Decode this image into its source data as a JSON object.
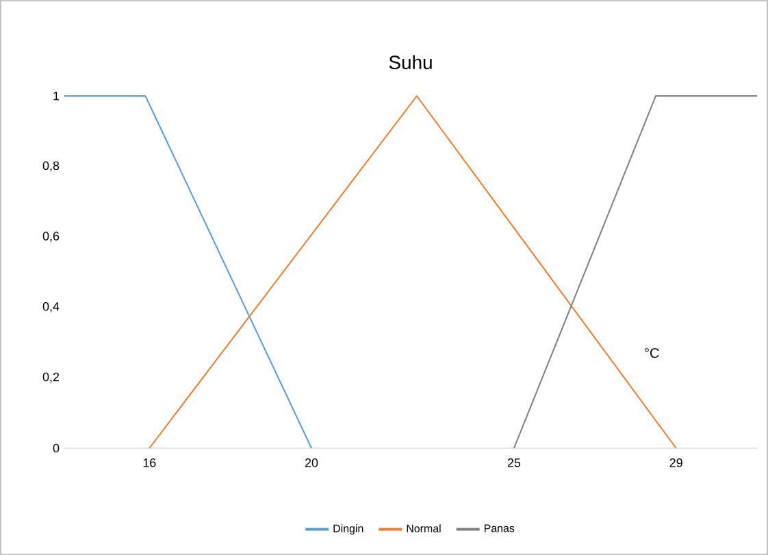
{
  "chart_data": {
    "type": "line",
    "title": "Suhu",
    "series": [
      {
        "name": "Dingin",
        "color": "#5b9bd5",
        "x": [
          13.9,
          15.9,
          20
        ],
        "values": [
          1,
          1,
          0
        ]
      },
      {
        "name": "Normal",
        "color": "#ed7d31",
        "x": [
          16,
          22.6,
          29
        ],
        "values": [
          0,
          1,
          0
        ]
      },
      {
        "name": "Panas",
        "color": "#7f7f7f",
        "x": [
          25,
          28.5,
          31
        ],
        "values": [
          0,
          1,
          1
        ]
      }
    ],
    "xlim": [
      13.9,
      31
    ],
    "xticks": [
      16,
      20,
      25,
      29
    ],
    "ylim": [
      0,
      1
    ],
    "yticks": [
      0,
      {
        "value": 0.2,
        "label": "0,2"
      },
      {
        "value": 0.4,
        "label": "0,4"
      },
      {
        "value": 0.6,
        "label": "0,6"
      },
      {
        "value": 0.8,
        "label": "0,8"
      },
      1
    ],
    "annotations": [
      "°C"
    ],
    "legend": "bottom",
    "grid": false,
    "line_style": "solid"
  }
}
